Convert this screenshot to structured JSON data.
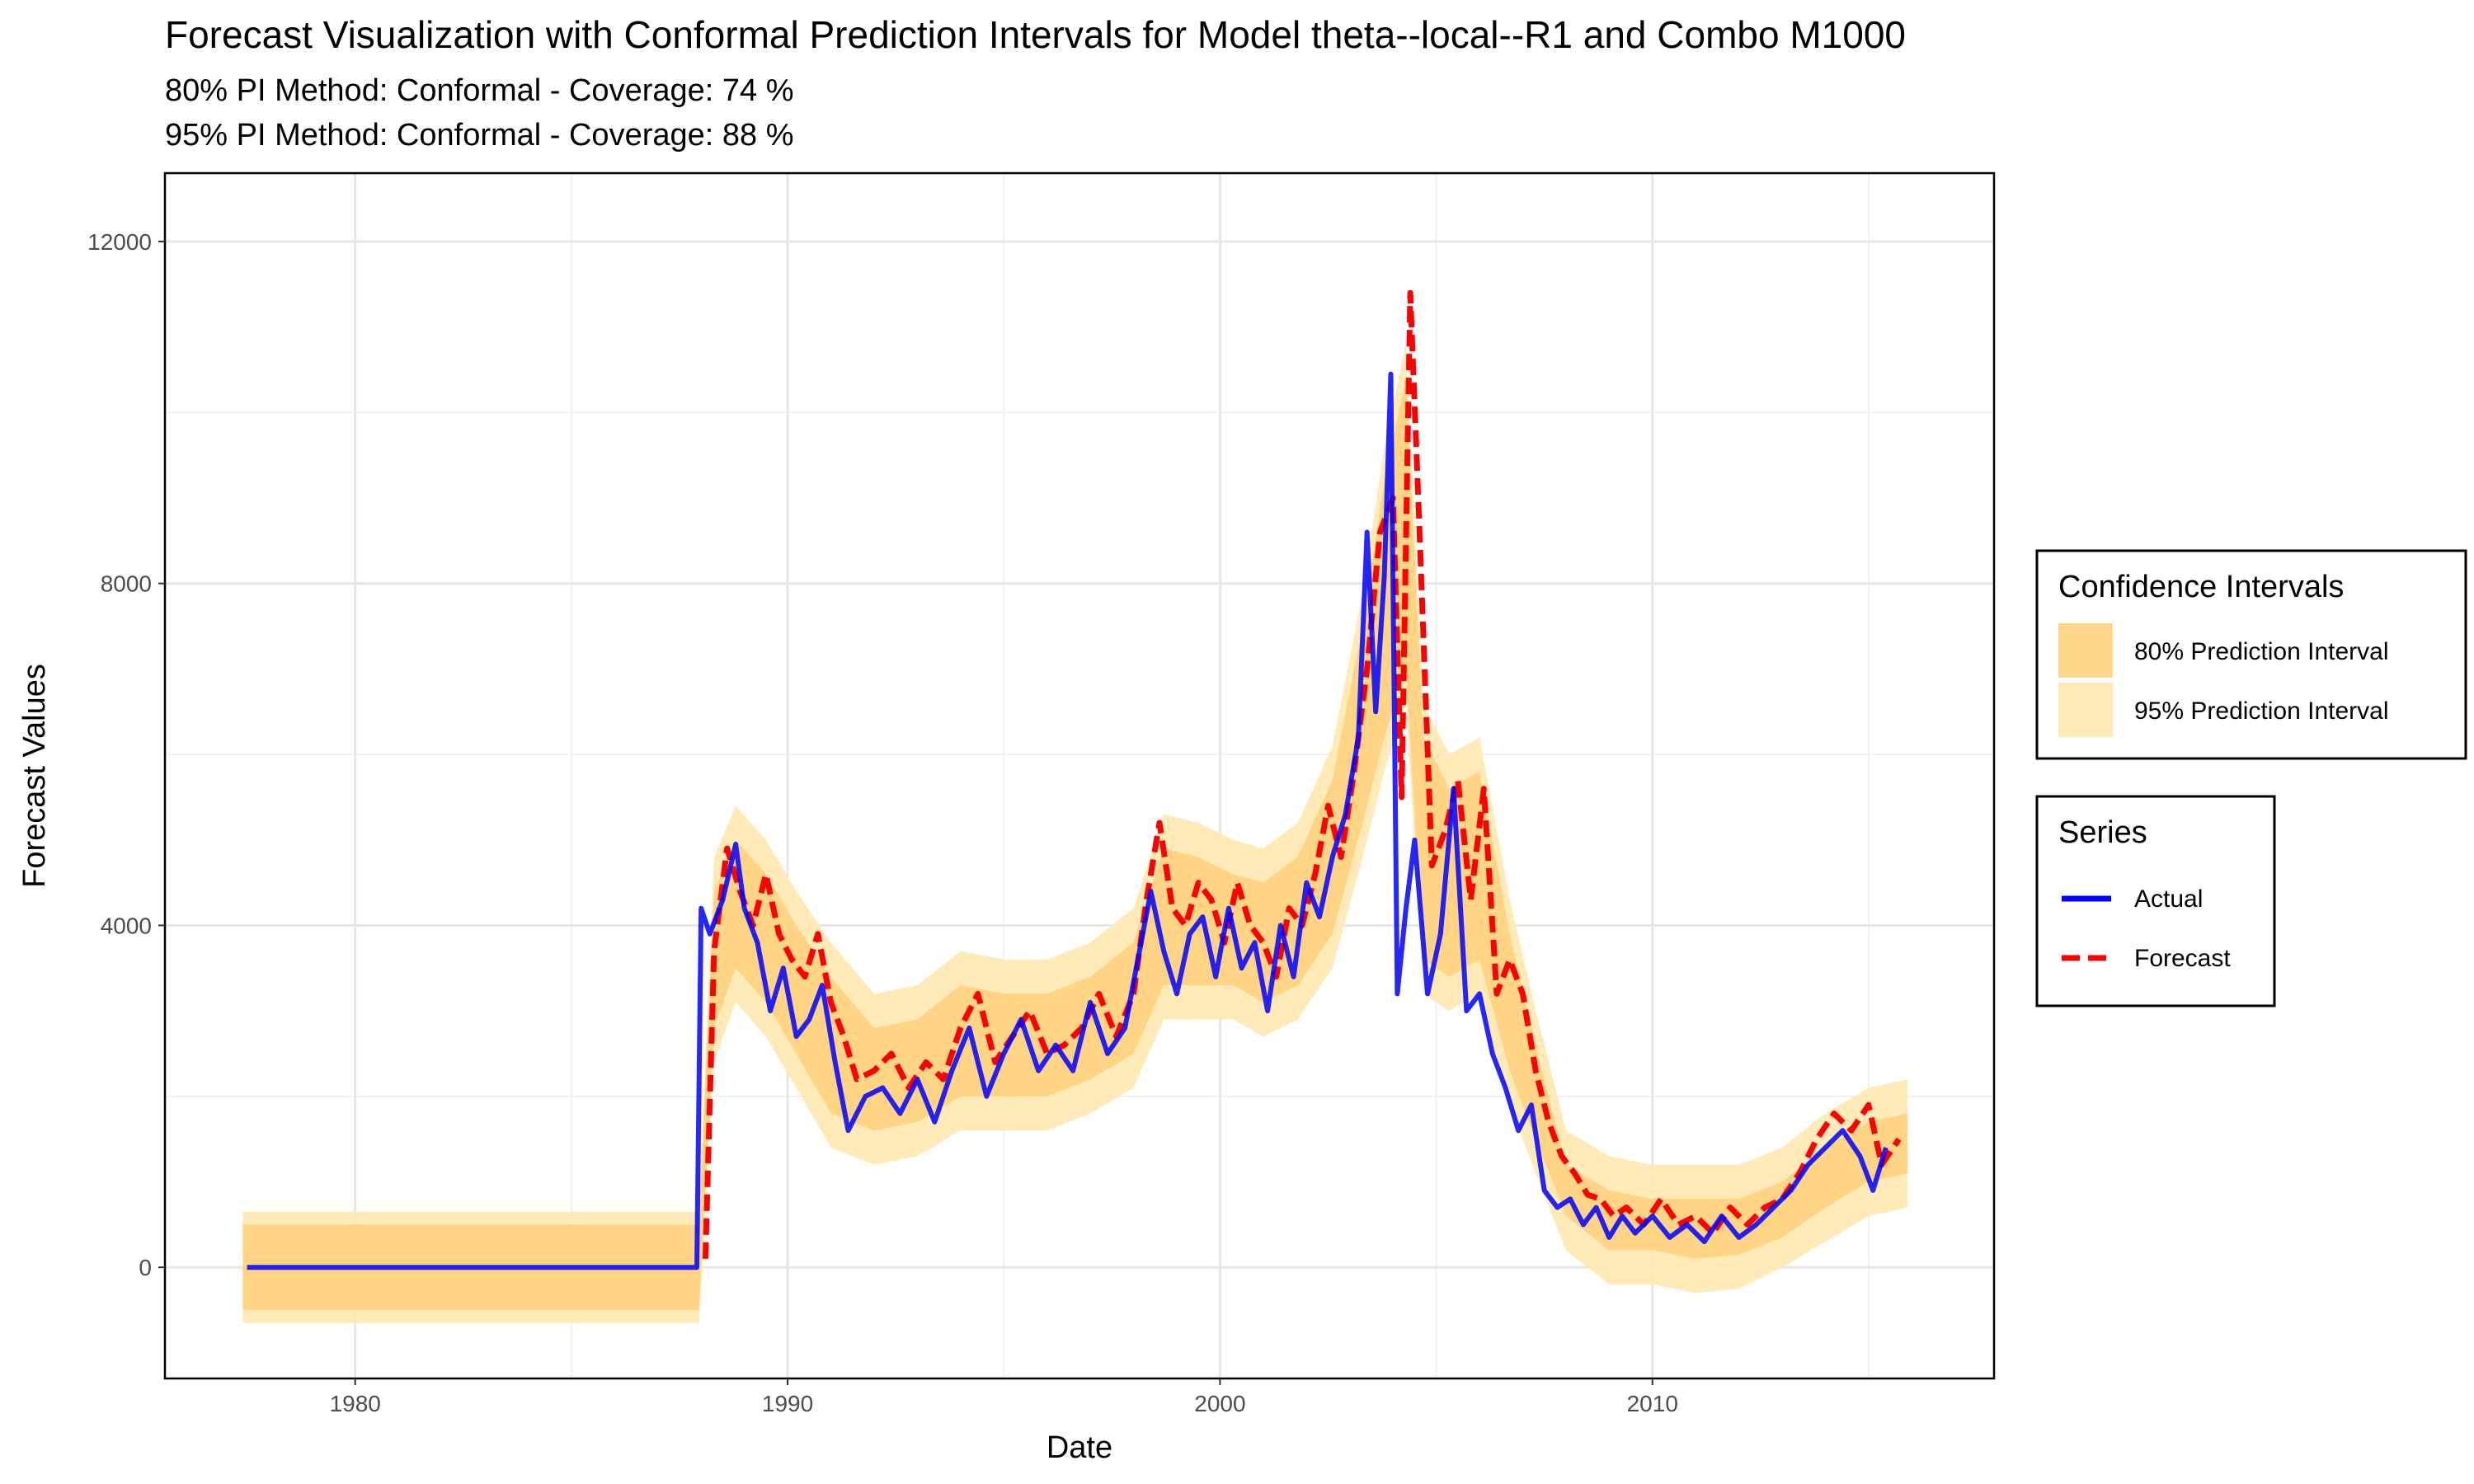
{
  "chart_data": {
    "type": "line",
    "title": "Forecast Visualization with Conformal Prediction Intervals for Model theta--local--R1 and Combo M1000",
    "subtitle_lines": [
      "80% PI Method: Conformal - Coverage: 74 %",
      " 95% PI Method: Conformal - Coverage: 88 %"
    ],
    "xlabel": "Date",
    "ylabel": "Forecast Values",
    "xlim": [
      1975.6,
      2017.9
    ],
    "ylim": [
      -1300,
      12800
    ],
    "x_ticks": [
      1980,
      1990,
      2000,
      2010
    ],
    "x_tick_labels": [
      "1980",
      "1990",
      "2000",
      "2010"
    ],
    "y_ticks": [
      0,
      4000,
      8000,
      12000
    ],
    "y_tick_labels": [
      "0",
      "4000",
      "8000",
      "12000"
    ],
    "grid": true,
    "x_unit": "year",
    "colors": {
      "actual": "#0000ff",
      "forecast": "#ff0000",
      "pi80": "#ffd280",
      "pi95": "#ffe8b0"
    },
    "series": [
      {
        "name": "Actual",
        "style": "solid",
        "x": [
          1977.5,
          1987.9,
          1988.0,
          1988.2,
          1988.5,
          1988.8,
          1989.0,
          1989.3,
          1989.6,
          1989.9,
          1990.2,
          1990.5,
          1990.8,
          1991.1,
          1991.4,
          1991.8,
          1992.2,
          1992.6,
          1993.0,
          1993.4,
          1993.8,
          1994.2,
          1994.6,
          1995.0,
          1995.4,
          1995.8,
          1996.2,
          1996.6,
          1997.0,
          1997.4,
          1997.8,
          1998.1,
          1998.4,
          1998.7,
          1999.0,
          1999.3,
          1999.6,
          1999.9,
          2000.2,
          2000.5,
          2000.8,
          2001.1,
          2001.4,
          2001.7,
          2002.0,
          2002.3,
          2002.6,
          2002.9,
          2003.2,
          2003.4,
          2003.6,
          2003.8,
          2003.95,
          2004.1,
          2004.3,
          2004.5,
          2004.8,
          2005.1,
          2005.4,
          2005.7,
          2006.0,
          2006.3,
          2006.6,
          2006.9,
          2007.2,
          2007.5,
          2007.8,
          2008.1,
          2008.4,
          2008.7,
          2009.0,
          2009.3,
          2009.6,
          2010.0,
          2010.4,
          2010.8,
          2011.2,
          2011.6,
          2012.0,
          2012.4,
          2012.8,
          2013.2,
          2013.6,
          2014.0,
          2014.4,
          2014.8,
          2015.1,
          2015.4
        ],
        "values": [
          0,
          0,
          4200,
          3900,
          4300,
          4950,
          4200,
          3800,
          3000,
          3500,
          2700,
          2900,
          3300,
          2400,
          1600,
          2000,
          2100,
          1800,
          2200,
          1700,
          2300,
          2800,
          2000,
          2500,
          2900,
          2300,
          2600,
          2300,
          3100,
          2500,
          2800,
          3600,
          4400,
          3700,
          3200,
          3900,
          4100,
          3400,
          4200,
          3500,
          3800,
          3000,
          4000,
          3400,
          4500,
          4100,
          4800,
          5300,
          6200,
          8600,
          6500,
          8100,
          10450,
          3200,
          4200,
          5000,
          3200,
          3900,
          5600,
          3000,
          3200,
          2500,
          2100,
          1600,
          1900,
          900,
          700,
          800,
          500,
          700,
          350,
          600,
          400,
          600,
          350,
          500,
          300,
          600,
          350,
          500,
          700,
          900,
          1200,
          1400,
          1600,
          1300,
          900,
          1400
        ]
      },
      {
        "name": "Forecast",
        "style": "dashed",
        "x": [
          1988.1,
          1988.3,
          1988.6,
          1988.9,
          1989.2,
          1989.5,
          1989.8,
          1990.1,
          1990.4,
          1990.7,
          1991.0,
          1991.3,
          1991.6,
          1992.0,
          1992.4,
          1992.8,
          1993.2,
          1993.6,
          1994.0,
          1994.4,
          1994.8,
          1995.2,
          1995.6,
          1996.0,
          1996.4,
          1996.8,
          1997.2,
          1997.6,
          1998.0,
          1998.3,
          1998.6,
          1998.9,
          1999.2,
          1999.5,
          1999.8,
          2000.1,
          2000.4,
          2000.7,
          2001.0,
          2001.3,
          2001.6,
          2001.9,
          2002.2,
          2002.5,
          2002.8,
          2003.1,
          2003.4,
          2003.7,
          2004.0,
          2004.2,
          2004.4,
          2004.6,
          2004.9,
          2005.2,
          2005.5,
          2005.8,
          2006.1,
          2006.4,
          2006.7,
          2007.0,
          2007.3,
          2007.6,
          2007.9,
          2008.2,
          2008.5,
          2008.8,
          2009.1,
          2009.4,
          2009.8,
          2010.2,
          2010.6,
          2011.0,
          2011.4,
          2011.8,
          2012.2,
          2012.6,
          2013.0,
          2013.4,
          2013.8,
          2014.2,
          2014.6,
          2015.0,
          2015.3,
          2015.7
        ],
        "values": [
          100,
          3700,
          4900,
          4400,
          4000,
          4600,
          3900,
          3600,
          3400,
          3900,
          3100,
          2700,
          2200,
          2300,
          2500,
          2100,
          2400,
          2200,
          2800,
          3200,
          2400,
          2700,
          3000,
          2500,
          2600,
          2800,
          3200,
          2700,
          3200,
          4300,
          5200,
          4200,
          4000,
          4500,
          4300,
          3800,
          4500,
          4000,
          3800,
          3400,
          4200,
          4000,
          4600,
          5400,
          4800,
          5800,
          7000,
          8600,
          9000,
          5500,
          11400,
          8800,
          4700,
          5100,
          5700,
          4300,
          5600,
          3200,
          3600,
          3200,
          2300,
          1700,
          1300,
          1100,
          850,
          800,
          600,
          700,
          500,
          800,
          500,
          600,
          400,
          700,
          500,
          700,
          800,
          1100,
          1500,
          1800,
          1600,
          1900,
          1200,
          1500
        ]
      }
    ],
    "intervals": [
      {
        "name": "80% Prediction Interval",
        "x": [
          1977.4,
          1987.95,
          1988.3,
          1988.8,
          1989.5,
          1990.2,
          1991.0,
          1992.0,
          1993.0,
          1994.0,
          1995.0,
          1996.0,
          1997.0,
          1998.0,
          1998.7,
          1999.5,
          2000.3,
          2001.0,
          2001.8,
          2002.6,
          2003.3,
          2003.8,
          2004.3,
          2004.7,
          2005.3,
          2006.0,
          2006.7,
          2007.3,
          2008.0,
          2009.0,
          2010.0,
          2011.0,
          2012.0,
          2013.0,
          2014.0,
          2015.0,
          2015.9
        ],
        "lower": [
          -500,
          -500,
          2800,
          3500,
          3100,
          2500,
          1800,
          1600,
          1700,
          2000,
          2000,
          2000,
          2200,
          2500,
          3300,
          3300,
          3300,
          3100,
          3300,
          3900,
          5200,
          6200,
          7000,
          3600,
          3400,
          3600,
          2300,
          1500,
          600,
          200,
          200,
          100,
          150,
          350,
          700,
          1000,
          1100
        ],
        "upper": [
          500,
          500,
          4400,
          5000,
          4600,
          4000,
          3400,
          2800,
          2900,
          3300,
          3200,
          3200,
          3400,
          3800,
          4900,
          4800,
          4600,
          4500,
          4800,
          5700,
          7500,
          9200,
          10400,
          6200,
          5600,
          5800,
          3900,
          2600,
          1200,
          900,
          800,
          800,
          800,
          1000,
          1400,
          1700,
          1800
        ]
      },
      {
        "name": "95% Prediction Interval",
        "x": [
          1977.4,
          1987.95,
          1988.3,
          1988.8,
          1989.5,
          1990.2,
          1991.0,
          1992.0,
          1993.0,
          1994.0,
          1995.0,
          1996.0,
          1997.0,
          1998.0,
          1998.7,
          1999.5,
          2000.3,
          2001.0,
          2001.8,
          2002.6,
          2003.3,
          2003.8,
          2004.3,
          2004.7,
          2005.3,
          2006.0,
          2006.7,
          2007.3,
          2008.0,
          2009.0,
          2010.0,
          2011.0,
          2012.0,
          2013.0,
          2014.0,
          2015.0,
          2015.9
        ],
        "lower": [
          -650,
          -650,
          2400,
          3100,
          2700,
          2100,
          1400,
          1200,
          1300,
          1600,
          1600,
          1600,
          1800,
          2100,
          2900,
          2900,
          2900,
          2700,
          2900,
          3500,
          4800,
          5800,
          6600,
          3200,
          3000,
          3200,
          1900,
          1100,
          200,
          -200,
          -200,
          -300,
          -250,
          0,
          300,
          600,
          700
        ],
        "upper": [
          650,
          650,
          4800,
          5400,
          5000,
          4400,
          3800,
          3200,
          3300,
          3700,
          3600,
          3600,
          3800,
          4200,
          5300,
          5200,
          5000,
          4900,
          5200,
          6100,
          7900,
          9600,
          10800,
          6600,
          6000,
          6200,
          4300,
          3000,
          1600,
          1300,
          1200,
          1200,
          1200,
          1400,
          1800,
          2100,
          2200
        ]
      }
    ],
    "legends": [
      {
        "title": "Confidence Intervals",
        "entries": [
          "80% Prediction Interval",
          "95% Prediction Interval"
        ]
      },
      {
        "title": "Series",
        "entries": [
          "Actual",
          "Forecast"
        ]
      }
    ],
    "legend_position": "right"
  }
}
